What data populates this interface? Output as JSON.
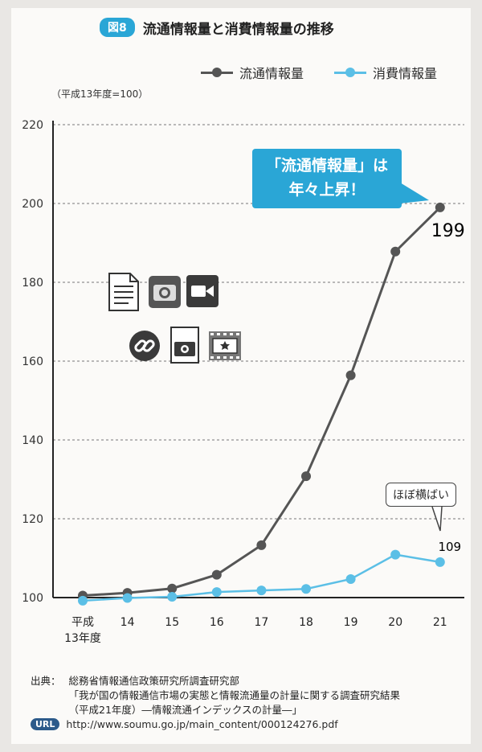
{
  "figure": {
    "badge": "図8",
    "title": "流通情報量と消費情報量の推移"
  },
  "legend": [
    {
      "label": "流通情報量",
      "color": "#555555"
    },
    {
      "label": "消費情報量",
      "color": "#5bbfe6"
    }
  ],
  "unit_note": "（平成13年度=100）",
  "callout": {
    "line1": "「流通情報量」は",
    "line2": "年々上昇！"
  },
  "bubble": "ほぼ横ばい",
  "source": {
    "label": "出典：",
    "lines": [
      "総務省情報通信政策研究所調査研究部",
      "「我が国の情報通信市場の実態と情報流通量の計量に関する調査研究結果",
      "（平成21年度）―情報流通インデックスの計量―」"
    ],
    "url_badge": "URL",
    "url": "http://www.soumu.go.jp/main_content/000124276.pdf"
  },
  "icons": [
    "document-icon",
    "camera-icon",
    "video-camera-icon",
    "link-icon",
    "photo-book-icon",
    "film-icon"
  ],
  "chart_data": {
    "type": "line",
    "categories": [
      "平成13年度",
      "14",
      "15",
      "16",
      "17",
      "18",
      "19",
      "20",
      "21"
    ],
    "x_labels_display": [
      [
        "平成",
        "13年度"
      ],
      [
        "14"
      ],
      [
        "15"
      ],
      [
        "16"
      ],
      [
        "17"
      ],
      [
        "18"
      ],
      [
        "19"
      ],
      [
        "20"
      ],
      [
        "21"
      ]
    ],
    "series": [
      {
        "name": "流通情報量",
        "color": "#555555",
        "values": [
          100.5,
          101.2,
          102.3,
          105.8,
          113.3,
          130.8,
          156.4,
          187.8,
          199
        ]
      },
      {
        "name": "消費情報量",
        "color": "#5bbfe6",
        "values": [
          99.2,
          99.9,
          100.2,
          101.4,
          101.8,
          102.2,
          104.7,
          110.9,
          109
        ]
      }
    ],
    "yticks": [
      100,
      120,
      140,
      160,
      180,
      200,
      220
    ],
    "ylim": [
      100,
      220
    ],
    "end_labels": [
      "199",
      "109"
    ],
    "grid": true
  }
}
